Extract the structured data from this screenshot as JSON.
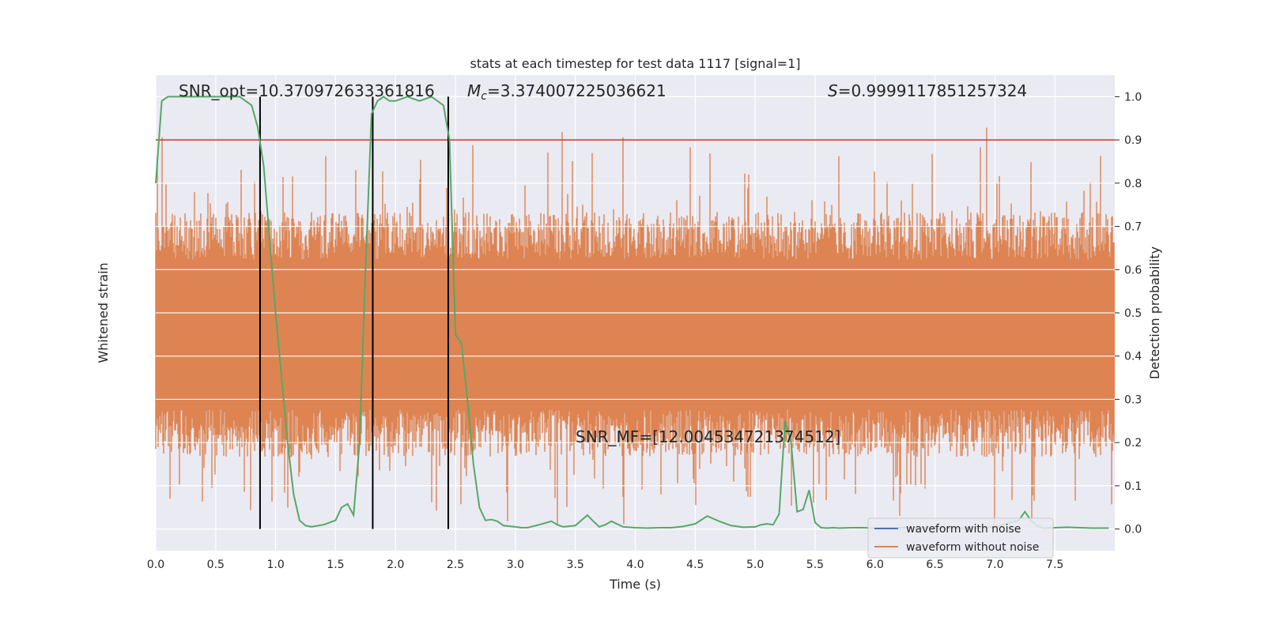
{
  "chart_data": {
    "type": "line",
    "title": "stats at each timestep for test data 1117 [signal=1]",
    "xlabel": "Time (s)",
    "ylabel_left": "Whitened strain",
    "ylabel_right": "Detection probability",
    "xlim": [
      0,
      8
    ],
    "ylim_right": [
      -0.05,
      1.05
    ],
    "x_ticks": [
      "0.0",
      "0.5",
      "1.0",
      "1.5",
      "2.0",
      "2.5",
      "3.0",
      "3.5",
      "4.0",
      "4.5",
      "5.0",
      "5.5",
      "6.0",
      "6.5",
      "7.0",
      "7.5"
    ],
    "x_tick_values": [
      0,
      0.5,
      1,
      1.5,
      2,
      2.5,
      3,
      3.5,
      4,
      4.5,
      5,
      5.5,
      6,
      6.5,
      7,
      7.5
    ],
    "y_right_ticks": [
      "0.0",
      "0.1",
      "0.2",
      "0.3",
      "0.4",
      "0.5",
      "0.6",
      "0.7",
      "0.8",
      "0.9",
      "1.0"
    ],
    "y_right_tick_values": [
      0,
      0.1,
      0.2,
      0.3,
      0.4,
      0.5,
      0.6,
      0.7,
      0.8,
      0.9,
      1.0
    ],
    "grid": true,
    "legend_position": "lower-right",
    "threshold": 0.9,
    "threshold_color": "#c0392b",
    "vertical_lines": [
      0.87,
      1.81,
      2.44
    ],
    "annotations": {
      "snr_opt": "SNR_opt=10.370972633361816",
      "mc": "=3.374007225036621",
      "mc_symbol": "M",
      "mc_sub": "c",
      "s": "=0.9999117851257324",
      "s_symbol": "S",
      "snr_mf": "SNR_MF=[12.004534721374512]"
    },
    "series": [
      {
        "name": "waveform with noise",
        "color": "#4c72b0",
        "kind": "strain"
      },
      {
        "name": "waveform without noise",
        "color": "#dd8452",
        "kind": "strain"
      },
      {
        "name": "",
        "color": "#55a868",
        "kind": "probability",
        "x": [
          0.0,
          0.05,
          0.1,
          0.2,
          0.3,
          0.4,
          0.5,
          0.6,
          0.7,
          0.75,
          0.8,
          0.85,
          0.9,
          1.0,
          1.05,
          1.1,
          1.15,
          1.2,
          1.25,
          1.3,
          1.4,
          1.5,
          1.55,
          1.6,
          1.65,
          1.7,
          1.75,
          1.8,
          1.85,
          1.9,
          1.95,
          2.0,
          2.1,
          2.2,
          2.3,
          2.35,
          2.4,
          2.45,
          2.5,
          2.55,
          2.6,
          2.65,
          2.7,
          2.75,
          2.8,
          2.85,
          2.9,
          3.0,
          3.05,
          3.1,
          3.2,
          3.3,
          3.35,
          3.4,
          3.5,
          3.6,
          3.65,
          3.7,
          3.75,
          3.8,
          3.9,
          4.0,
          4.1,
          4.2,
          4.3,
          4.4,
          4.5,
          4.6,
          4.7,
          4.8,
          4.9,
          5.0,
          5.05,
          5.1,
          5.15,
          5.2,
          5.25,
          5.3,
          5.35,
          5.4,
          5.45,
          5.5,
          5.55,
          5.6,
          5.65,
          5.7,
          5.8,
          5.9,
          6.0,
          6.2,
          6.4,
          6.6,
          6.8,
          7.0,
          7.2,
          7.25,
          7.3,
          7.35,
          7.4,
          7.5,
          7.6,
          7.8,
          7.95
        ],
        "y": [
          0.8,
          0.99,
          1.0,
          1.0,
          1.0,
          1.0,
          1.0,
          1.0,
          1.0,
          0.99,
          0.98,
          0.93,
          0.84,
          0.5,
          0.35,
          0.2,
          0.08,
          0.02,
          0.008,
          0.005,
          0.01,
          0.02,
          0.05,
          0.058,
          0.032,
          0.2,
          0.6,
          0.96,
          0.99,
          1.0,
          0.99,
          0.99,
          1.0,
          0.99,
          1.0,
          0.99,
          0.98,
          0.9,
          0.45,
          0.43,
          0.3,
          0.15,
          0.05,
          0.02,
          0.022,
          0.018,
          0.008,
          0.005,
          0.003,
          0.003,
          0.01,
          0.018,
          0.01,
          0.005,
          0.008,
          0.032,
          0.018,
          0.005,
          0.01,
          0.018,
          0.005,
          0.003,
          0.002,
          0.003,
          0.003,
          0.006,
          0.012,
          0.03,
          0.018,
          0.008,
          0.004,
          0.005,
          0.01,
          0.012,
          0.01,
          0.035,
          0.25,
          0.2,
          0.04,
          0.045,
          0.09,
          0.015,
          0.003,
          0.002,
          0.003,
          0.002,
          0.003,
          0.003,
          0.002,
          0.003,
          0.003,
          0.002,
          0.002,
          0.005,
          0.02,
          0.04,
          0.02,
          0.008,
          0.002,
          0.003,
          0.004,
          0.002,
          0.002
        ]
      }
    ]
  }
}
